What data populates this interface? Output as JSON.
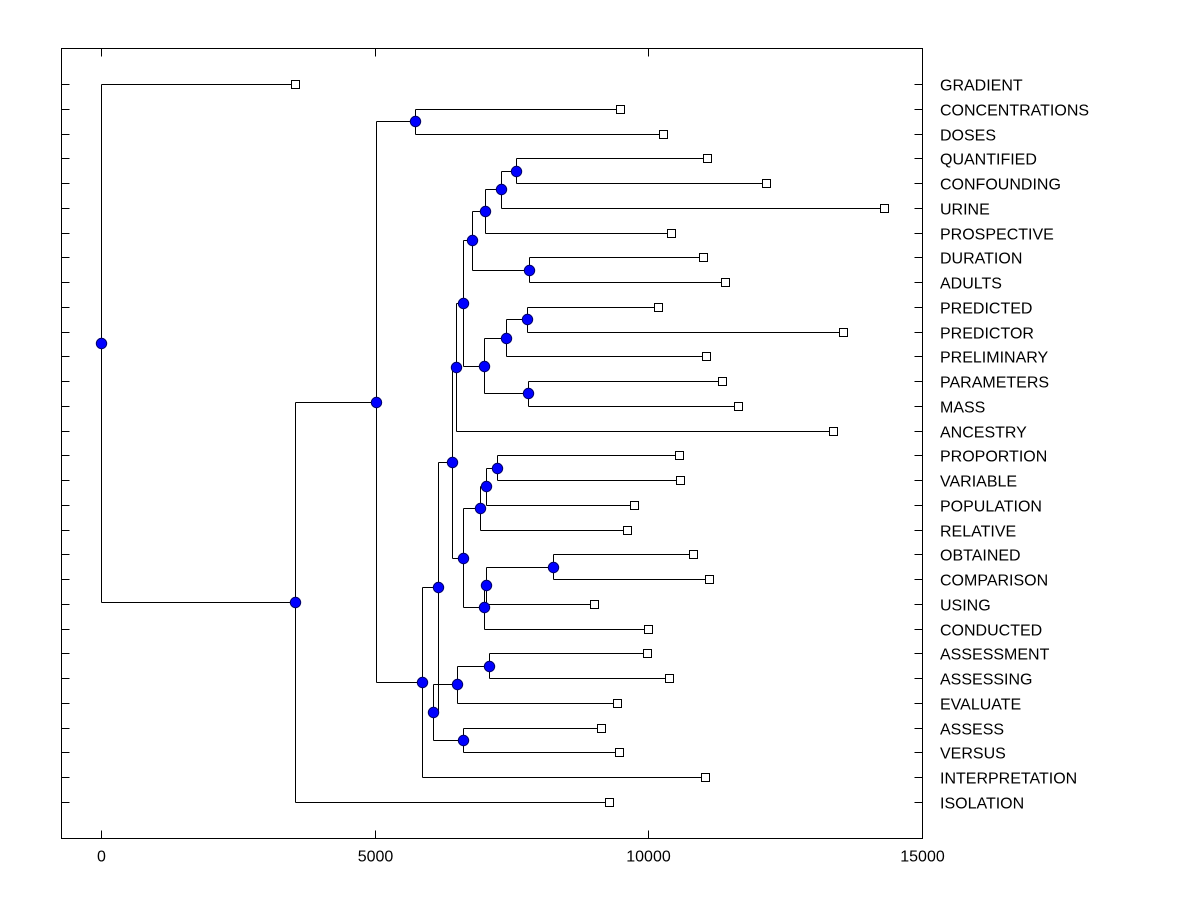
{
  "chart_data": {
    "type": "dendrogram",
    "title": "",
    "xlabel": "",
    "ylabel": "",
    "orientation": "horizontal",
    "xlim": [
      -700,
      15000
    ],
    "xticks": [
      0,
      5000,
      10000,
      15000
    ],
    "xtick_labels": [
      "0",
      "5000",
      "10000",
      "15000"
    ],
    "grid": false,
    "node_color": "#0000ff",
    "leaf_marker": "open-square",
    "leaves": [
      {
        "id": "GRADIENT",
        "label": "GRADIENT",
        "x": 3550
      },
      {
        "id": "CONCENTRATIONS",
        "label": "CONCENTRATIONS",
        "x": 9480
      },
      {
        "id": "DOSES",
        "label": "DOSES",
        "x": 10270
      },
      {
        "id": "QUANTIFIED",
        "label": "QUANTIFIED",
        "x": 11070
      },
      {
        "id": "CONFOUNDING",
        "label": "CONFOUNDING",
        "x": 12150
      },
      {
        "id": "URINE",
        "label": "URINE",
        "x": 14310
      },
      {
        "id": "PROSPECTIVE",
        "label": "PROSPECTIVE",
        "x": 10420
      },
      {
        "id": "DURATION",
        "label": "DURATION",
        "x": 11000
      },
      {
        "id": "ADULTS",
        "label": "ADULTS",
        "x": 11400
      },
      {
        "id": "PREDICTED",
        "label": "PREDICTED",
        "x": 10180
      },
      {
        "id": "PREDICTOR",
        "label": "PREDICTOR",
        "x": 13560
      },
      {
        "id": "PRELIMINARY",
        "label": "PRELIMINARY",
        "x": 11050
      },
      {
        "id": "PARAMETERS",
        "label": "PARAMETERS",
        "x": 11350
      },
      {
        "id": "MASS",
        "label": "MASS",
        "x": 11640
      },
      {
        "id": "ANCESTRY",
        "label": "ANCESTRY",
        "x": 13380
      },
      {
        "id": "PROPORTION",
        "label": "PROPORTION",
        "x": 10560
      },
      {
        "id": "VARIABLE",
        "label": "VARIABLE",
        "x": 10580
      },
      {
        "id": "POPULATION",
        "label": "POPULATION",
        "x": 9740
      },
      {
        "id": "RELATIVE",
        "label": "RELATIVE",
        "x": 9610
      },
      {
        "id": "OBTAINED",
        "label": "OBTAINED",
        "x": 10820
      },
      {
        "id": "COMPARISON",
        "label": "COMPARISON",
        "x": 11110
      },
      {
        "id": "USING",
        "label": "USING",
        "x": 9010
      },
      {
        "id": "CONDUCTED",
        "label": "CONDUCTED",
        "x": 10000
      },
      {
        "id": "ASSESSMENT",
        "label": "ASSESSMENT",
        "x": 9980
      },
      {
        "id": "ASSESSING",
        "label": "ASSESSING",
        "x": 10380
      },
      {
        "id": "EVALUATE",
        "label": "EVALUATE",
        "x": 9430
      },
      {
        "id": "ASSESS",
        "label": "ASSESS",
        "x": 9140
      },
      {
        "id": "VERSUS",
        "label": "VERSUS",
        "x": 9460
      },
      {
        "id": "INTERPRETATION",
        "label": "INTERPRETATION",
        "x": 11040
      },
      {
        "id": "ISOLATION",
        "label": "ISOLATION",
        "x": 9280
      }
    ],
    "nodes": [
      {
        "id": "n_conc_doses",
        "x": 5737,
        "children": [
          "CONCENTRATIONS",
          "DOSES"
        ]
      },
      {
        "id": "n_quant_conf",
        "x": 7583,
        "children": [
          "QUANTIFIED",
          "CONFOUNDING"
        ]
      },
      {
        "id": "n_urine",
        "x": 7309,
        "children": [
          "n_quant_conf",
          "URINE"
        ]
      },
      {
        "id": "n_prospective",
        "x": 7016,
        "children": [
          "n_urine",
          "PROSPECTIVE"
        ]
      },
      {
        "id": "n_duration_adults",
        "x": 7820,
        "children": [
          "DURATION",
          "ADULTS"
        ]
      },
      {
        "id": "n_f",
        "x": 6779,
        "children": [
          "n_prospective",
          "n_duration_adults"
        ]
      },
      {
        "id": "n_predicted_predictor",
        "x": 7784,
        "children": [
          "PREDICTED",
          "PREDICTOR"
        ]
      },
      {
        "id": "n_preliminary",
        "x": 7400,
        "children": [
          "n_predicted_predictor",
          "PRELIMINARY"
        ]
      },
      {
        "id": "n_param_mass",
        "x": 7802,
        "children": [
          "PARAMETERS",
          "MASS"
        ]
      },
      {
        "id": "n_j",
        "x": 6998,
        "children": [
          "n_preliminary",
          "n_param_mass"
        ]
      },
      {
        "id": "n_k",
        "x": 6614,
        "children": [
          "n_f",
          "n_j"
        ]
      },
      {
        "id": "n_ancestry",
        "x": 6486,
        "children": [
          "n_k",
          "ANCESTRY"
        ]
      },
      {
        "id": "n_prop_var",
        "x": 7236,
        "children": [
          "PROPORTION",
          "VARIABLE"
        ]
      },
      {
        "id": "n_population",
        "x": 7035,
        "children": [
          "n_prop_var",
          "POPULATION"
        ]
      },
      {
        "id": "n_relative",
        "x": 6925,
        "children": [
          "n_population",
          "RELATIVE"
        ]
      },
      {
        "id": "n_obt_comp",
        "x": 8259,
        "children": [
          "OBTAINED",
          "COMPARISON"
        ]
      },
      {
        "id": "n_using",
        "x": 7035,
        "children": [
          "n_obt_comp",
          "USING"
        ]
      },
      {
        "id": "n_conducted",
        "x": 6998,
        "children": [
          "n_using",
          "CONDUCTED"
        ]
      },
      {
        "id": "n_s",
        "x": 6614,
        "children": [
          "n_relative",
          "n_conducted"
        ]
      },
      {
        "id": "n_t",
        "x": 6413,
        "children": [
          "n_ancestry",
          "n_s"
        ]
      },
      {
        "id": "n_assessment_assessing",
        "x": 7089,
        "children": [
          "ASSESSMENT",
          "ASSESSING"
        ]
      },
      {
        "id": "n_evaluate",
        "x": 6505,
        "children": [
          "n_assessment_assessing",
          "EVALUATE"
        ]
      },
      {
        "id": "n_assess_versus",
        "x": 6614,
        "children": [
          "ASSESS",
          "VERSUS"
        ]
      },
      {
        "id": "n_x",
        "x": 6066,
        "children": [
          "n_evaluate",
          "n_assess_versus"
        ]
      },
      {
        "id": "n_y",
        "x": 6158,
        "children": [
          "n_t",
          "n_x"
        ]
      },
      {
        "id": "n_interpretation",
        "x": 5865,
        "children": [
          "n_y",
          "INTERPRETATION"
        ]
      },
      {
        "id": "n_aa",
        "x": 5025,
        "children": [
          "n_conc_doses",
          "n_interpretation"
        ]
      },
      {
        "id": "n_isolation",
        "x": 3545,
        "children": [
          "n_aa",
          "ISOLATION"
        ]
      },
      {
        "id": "n_root",
        "x": 0,
        "children": [
          "GRADIENT",
          "n_isolation"
        ]
      }
    ]
  }
}
